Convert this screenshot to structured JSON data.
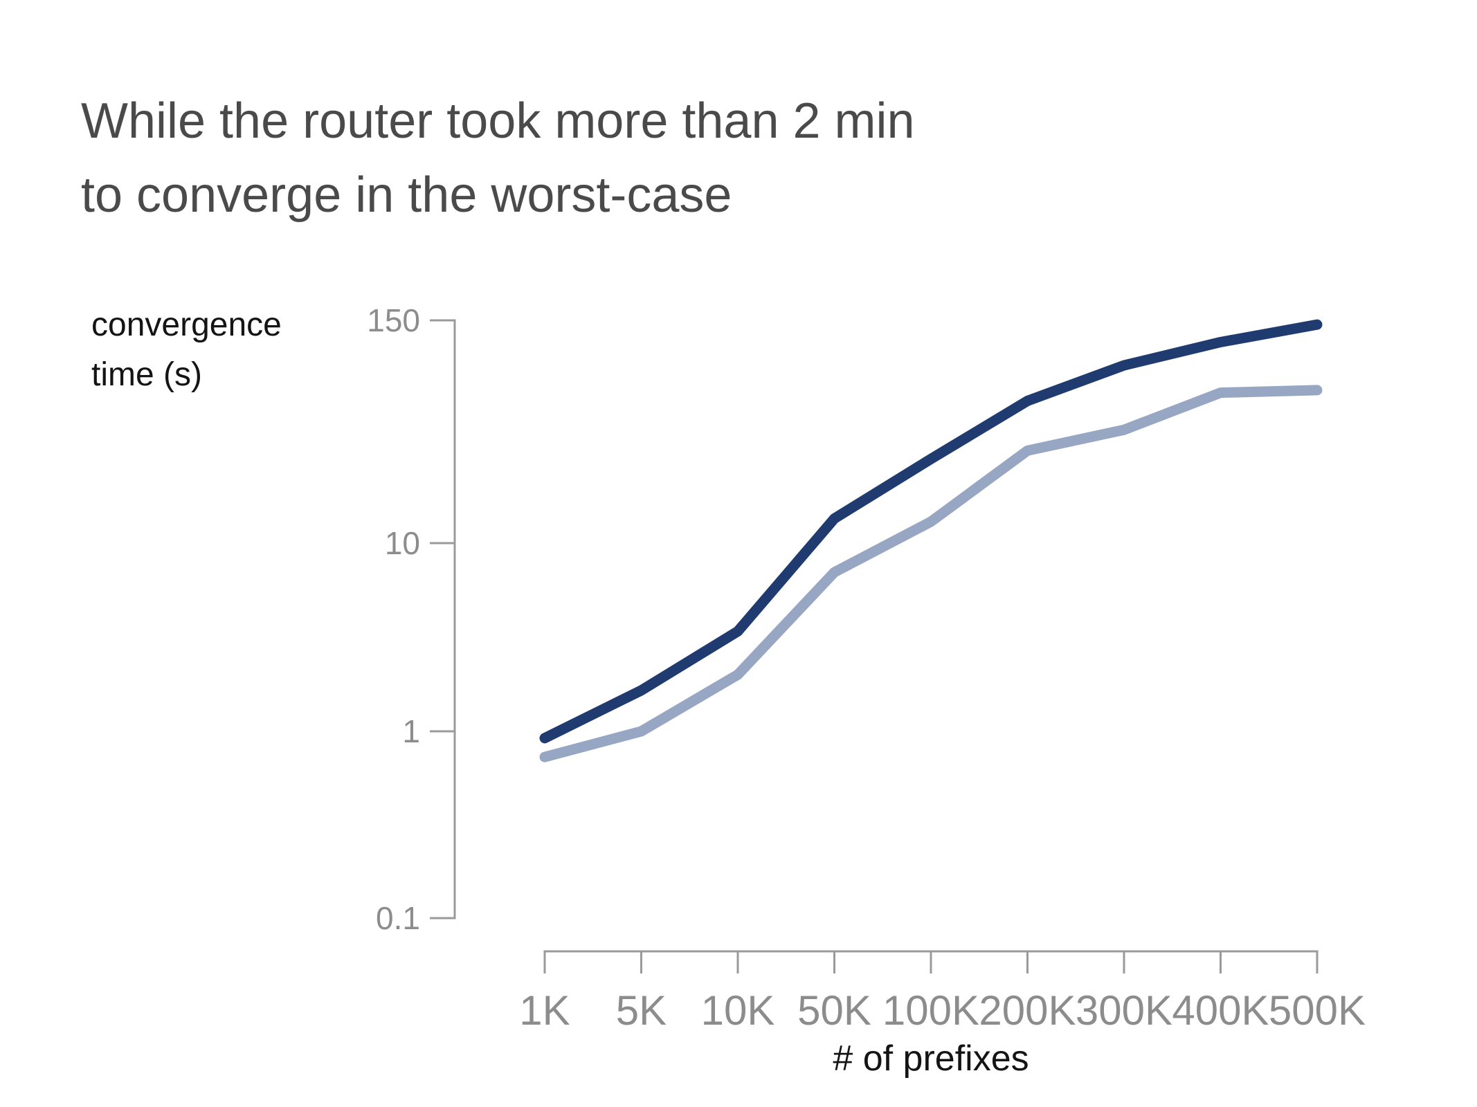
{
  "slide": {
    "title_line1": "While the router took more than 2 min",
    "title_line2": "to converge in the worst-case",
    "y_axis_label_line1": "convergence",
    "y_axis_label_line2": "time (s)",
    "x_axis_label": "# of prefixes"
  },
  "colors": {
    "background": "#ffffff",
    "title_text": "#4a4a4a",
    "axis_line": "#9a9a9a",
    "tick_label_text": "#8c8c8c",
    "axis_label_text": "#141414",
    "dark_line": "#1f3b70",
    "light_line": "#97a6c2"
  },
  "chart_data": {
    "type": "line",
    "title": "",
    "xlabel": "# of prefixes",
    "ylabel": "convergence time (s)",
    "x_scale": "log (category ticks, evenly spaced)",
    "y_scale": "log",
    "ylim": [
      0.1,
      150
    ],
    "grid": "off",
    "legend": "none",
    "categories": [
      "1K",
      "5K",
      "10K",
      "50K",
      "100K",
      "200K",
      "300K",
      "400K",
      "500K"
    ],
    "y_tick_labels": [
      "150",
      "10",
      "1",
      "0.1"
    ],
    "y_tick_values": [
      150,
      10,
      1,
      0.1
    ],
    "series": [
      {
        "key": "dark-blue-line",
        "color": "#1f3b70",
        "values": [
          0.92,
          1.65,
          3.4,
          13.5,
          28,
          57,
          88,
          117,
          145
        ]
      },
      {
        "key": "light-blue-line",
        "color": "#97a6c2",
        "values": [
          0.73,
          1.0,
          2.0,
          7.0,
          13,
          31,
          40,
          63,
          65
        ]
      }
    ]
  }
}
